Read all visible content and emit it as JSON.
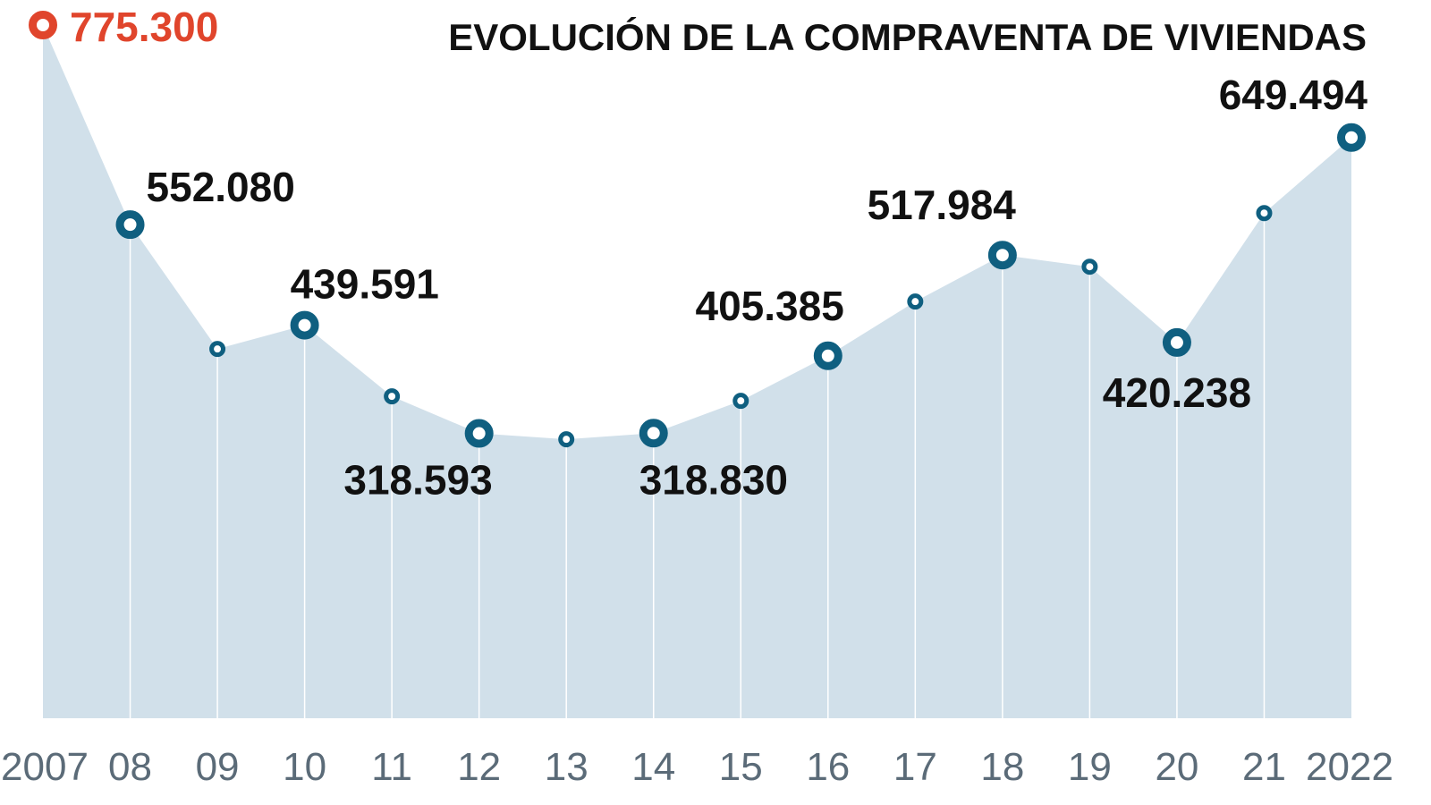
{
  "chart_data": {
    "type": "area",
    "title": "EVOLUCIÓN DE LA COMPRAVENTA DE VIVIENDAS",
    "xlabel": "",
    "ylabel": "",
    "categories": [
      "2007",
      "08",
      "09",
      "10",
      "11",
      "12",
      "13",
      "14",
      "15",
      "16",
      "17",
      "18",
      "19",
      "20",
      "21",
      "2022"
    ],
    "series": [
      {
        "name": "Compraventa de viviendas",
        "values": [
          775300,
          552080,
          413000,
          439591,
          360000,
          318593,
          312000,
          318830,
          355000,
          405385,
          466000,
          517984,
          505000,
          420238,
          565000,
          649494
        ]
      }
    ],
    "labels": [
      {
        "index": 0,
        "text": "775.300",
        "highlight": true
      },
      {
        "index": 1,
        "text": "552.080"
      },
      {
        "index": 3,
        "text": "439.591"
      },
      {
        "index": 5,
        "text": "318.593"
      },
      {
        "index": 7,
        "text": "318.830"
      },
      {
        "index": 9,
        "text": "405.385"
      },
      {
        "index": 11,
        "text": "517.984"
      },
      {
        "index": 13,
        "text": "420.238"
      },
      {
        "index": 15,
        "text": "649.494"
      }
    ],
    "ylim": [
      0,
      775300
    ],
    "grid": false,
    "legend": "none",
    "colors": {
      "area": "#d1e0ea",
      "marker": "#0f5f80",
      "highlight": "#e0452c",
      "text": "#111111",
      "ticks": "#5b6b78"
    }
  }
}
